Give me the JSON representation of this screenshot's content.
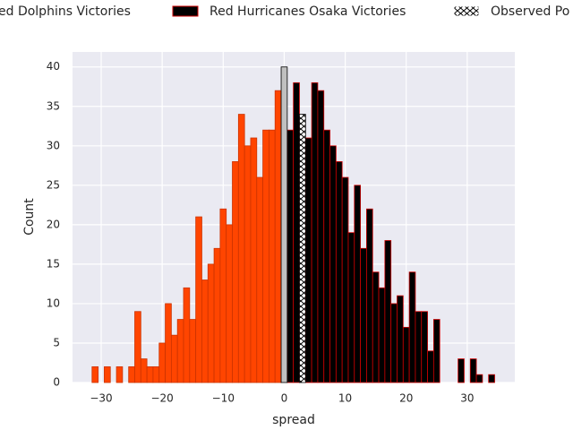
{
  "chart_data": {
    "type": "bar",
    "xlabel": "spread",
    "ylabel": "Count",
    "xlim": [
      -34.7,
      37.8
    ],
    "ylim": [
      0,
      41.9
    ],
    "xticks": [
      {
        "value": -30,
        "label": "−30"
      },
      {
        "value": -20,
        "label": "−20"
      },
      {
        "value": -10,
        "label": "−10"
      },
      0,
      10,
      20,
      30
    ],
    "yticks": [
      0,
      5,
      10,
      15,
      20,
      25,
      30,
      35,
      40
    ],
    "grid": true,
    "bar_width": 1,
    "series": [
      {
        "name": "ed Dolphins Victories",
        "color": "#ff4500",
        "edgecolor": "#cc3300",
        "x": [
          -31,
          -29,
          -27,
          -25,
          -24,
          -23,
          -22,
          -21,
          -20,
          -19,
          -18,
          -17,
          -16,
          -15,
          -14,
          -13,
          -12,
          -11,
          -10,
          -9,
          -8,
          -7,
          -6,
          -5,
          -4,
          -3,
          -2,
          -1
        ],
        "values": [
          2,
          2,
          2,
          2,
          9,
          3,
          2,
          2,
          5,
          10,
          6,
          8,
          12,
          8,
          21,
          13,
          15,
          17,
          22,
          20,
          28,
          34,
          30,
          31,
          26,
          32,
          32,
          37
        ]
      },
      {
        "name": "Red Hurricanes Osaka Victories",
        "color": "#000000",
        "edgecolor": "#cc0000",
        "x": [
          1,
          2,
          4,
          5,
          6,
          7,
          8,
          9,
          10,
          11,
          12,
          13,
          14,
          15,
          16,
          17,
          18,
          19,
          20,
          21,
          22,
          23,
          24,
          25,
          29,
          31,
          32,
          34
        ],
        "values": [
          32,
          38,
          31,
          38,
          37,
          32,
          30,
          28,
          26,
          19,
          25,
          17,
          22,
          14,
          12,
          18,
          10,
          11,
          7,
          14,
          9,
          9,
          4,
          8,
          3,
          3,
          1,
          1
        ]
      },
      {
        "color": "#c0c0c0",
        "edgecolor": "#000000",
        "x": [
          0
        ],
        "values": [
          40
        ]
      },
      {
        "name": "Observed Po",
        "color": "#ffffff",
        "edgecolor": "#000000",
        "hatch": true,
        "x": [
          3
        ],
        "values": [
          34
        ]
      }
    ]
  }
}
